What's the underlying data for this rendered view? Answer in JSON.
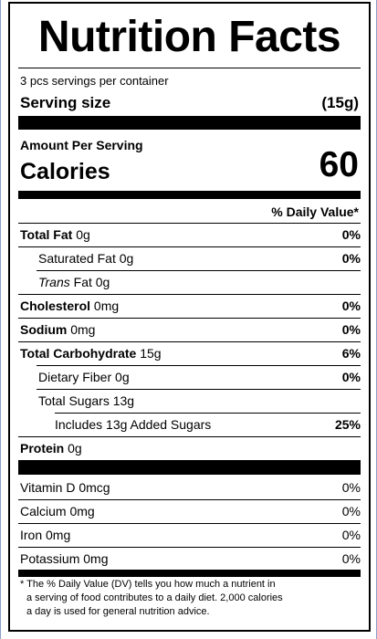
{
  "title": "Nutrition Facts",
  "servings_per_container": "3 pcs servings per container",
  "serving_size": {
    "label": "Serving size",
    "value": "(15g)"
  },
  "amount_per_serving": "Amount Per Serving",
  "calories": {
    "label": "Calories",
    "value": "60"
  },
  "daily_value_header": "% Daily Value*",
  "nutrients": {
    "total_fat": {
      "label": "Total Fat",
      "amount": "0g",
      "dv": "0%"
    },
    "saturated_fat": {
      "label": "Saturated Fat",
      "amount": "0g",
      "dv": "0%"
    },
    "trans_fat": {
      "label_italic": "Trans",
      "label": "Fat",
      "amount": "0g"
    },
    "cholesterol": {
      "label": "Cholesterol",
      "amount": "0mg",
      "dv": "0%"
    },
    "sodium": {
      "label": "Sodium",
      "amount": "0mg",
      "dv": "0%"
    },
    "total_carbohydrate": {
      "label": "Total Carbohydrate",
      "amount": "15g",
      "dv": "6%"
    },
    "dietary_fiber": {
      "label": "Dietary Fiber",
      "amount": "0g",
      "dv": "0%"
    },
    "total_sugars": {
      "label": "Total Sugars",
      "amount": "13g"
    },
    "added_sugars": {
      "prefix": "Includes",
      "amount": "13g",
      "label": "Added Sugars",
      "dv": "25%"
    },
    "protein": {
      "label": "Protein",
      "amount": "0g"
    }
  },
  "vitamins": {
    "vitamin_d": {
      "label": "Vitamin D",
      "amount": "0mcg",
      "dv": "0%"
    },
    "calcium": {
      "label": "Calcium",
      "amount": "0mg",
      "dv": "0%"
    },
    "iron": {
      "label": "Iron",
      "amount": "0mg",
      "dv": "0%"
    },
    "potassium": {
      "label": "Potassium",
      "amount": "0mg",
      "dv": "0%"
    }
  },
  "footnote": {
    "line1": "* The % Daily Value (DV) tells you how much a nutrient in",
    "line2": "a serving of food contributes to a daily diet. 2,000 calories",
    "line3": "a day is used for general nutrition advice."
  }
}
